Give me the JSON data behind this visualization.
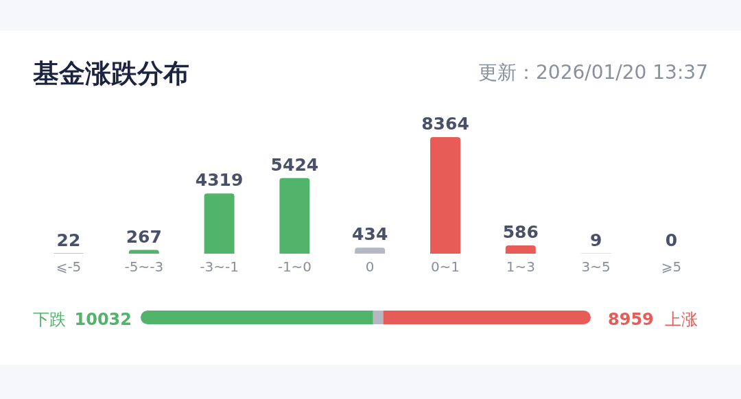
{
  "chart_data": [
    {
      "type": "bar",
      "title": "基金涨跌分布",
      "annotations": [
        "更新：2026/01/20 13:37"
      ],
      "categories": [
        "⩽-5",
        "-5~-3",
        "-3~-1",
        "-1~0",
        "0",
        "0~1",
        "1~3",
        "3~5",
        "⩾5"
      ],
      "values": [
        22,
        267,
        4319,
        5424,
        434,
        8364,
        586,
        9,
        0
      ],
      "colors": [
        "#52b36a",
        "#52b36a",
        "#52b36a",
        "#52b36a",
        "#b4b8c4",
        "#e85c58",
        "#e85c58",
        "#e85c58",
        "#e85c58"
      ],
      "data_labels": true
    },
    {
      "type": "bar",
      "orientation": "horizontal",
      "stacked": true,
      "series": [
        {
          "name": "下跌",
          "color": "#52b36a",
          "values": [
            10032
          ],
          "value_labels": [
            "10032"
          ]
        },
        {
          "color": "#b4b8c4",
          "values": [
            434
          ],
          "value_labels": [
            null
          ]
        },
        {
          "name": "上涨",
          "color": "#e85c58",
          "values": [
            8959
          ],
          "value_labels": [
            "8959"
          ]
        }
      ]
    }
  ]
}
